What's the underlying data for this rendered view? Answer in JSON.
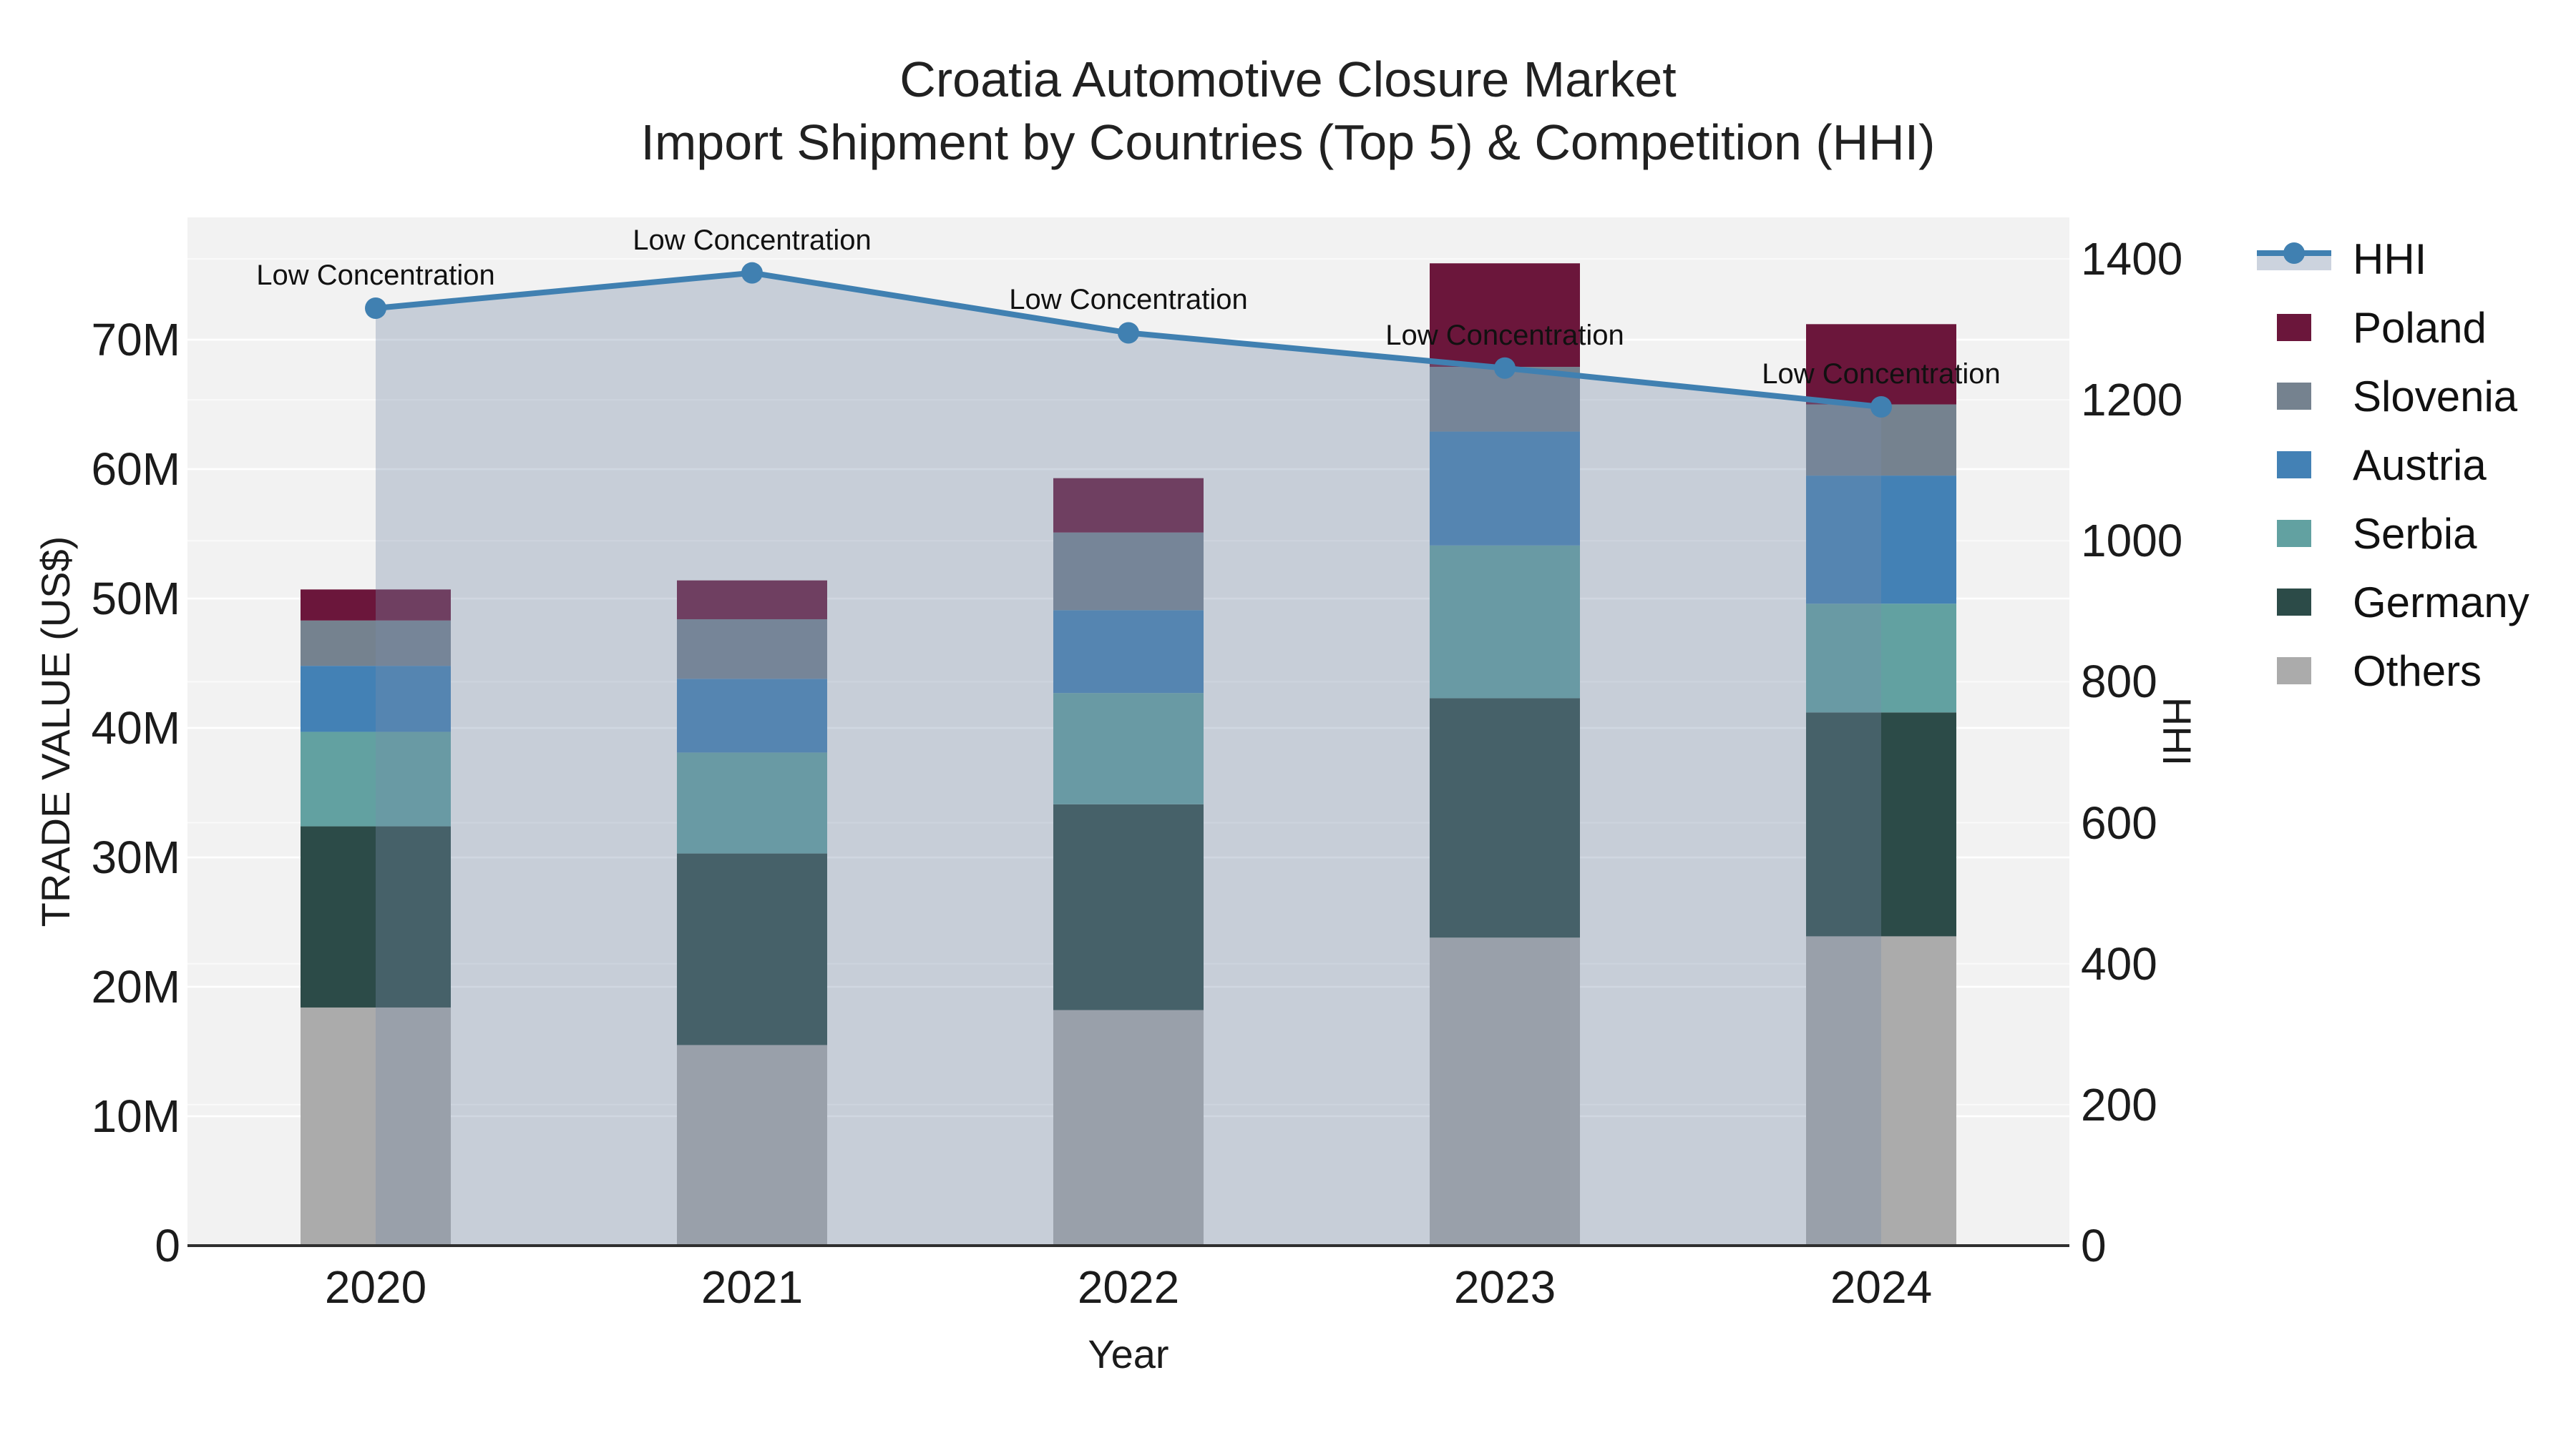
{
  "figure": {
    "title_line1": "Croatia Automotive Closure Market",
    "title_line2": "Import Shipment by Countries (Top 5) & Competition (HHI)"
  },
  "chart_data": {
    "type": "bar",
    "subtype": "stacked-bars-with-line-overlay",
    "plot_bg": "#f2f2f2",
    "categories": [
      "2020",
      "2021",
      "2022",
      "2023",
      "2024"
    ],
    "unit": "million US$",
    "series": [
      {
        "name": "Others",
        "color": "#ababab",
        "values": [
          18.4,
          15.5,
          18.2,
          23.8,
          23.9
        ]
      },
      {
        "name": "Germany",
        "color": "#2c4b48",
        "values": [
          14.0,
          14.8,
          15.9,
          18.5,
          17.3
        ]
      },
      {
        "name": "Serbia",
        "color": "#62a1a1",
        "values": [
          7.3,
          7.8,
          8.6,
          11.8,
          8.4
        ]
      },
      {
        "name": "Austria",
        "color": "#4381b5",
        "values": [
          5.1,
          5.7,
          6.4,
          8.8,
          9.9
        ]
      },
      {
        "name": "Slovenia",
        "color": "#75828f",
        "values": [
          3.5,
          4.6,
          6.0,
          5.0,
          5.5
        ]
      },
      {
        "name": "Poland",
        "color": "#6b163b",
        "values": [
          2.4,
          3.0,
          4.2,
          8.0,
          6.2
        ]
      }
    ],
    "bar_totals": [
      50.7,
      51.4,
      59.3,
      75.9,
      71.2
    ],
    "line_series": {
      "name": "HHI",
      "axis": "right",
      "values": [
        1330,
        1380,
        1295,
        1245,
        1190
      ],
      "color": "#4080b1",
      "area_color": "rgba(120,140,170,0.35)",
      "legend_band_color": "#ccd3de"
    },
    "annotations": [
      "Low Concentration",
      "Low Concentration",
      "Low Concentration",
      "Low Concentration",
      "Low Concentration"
    ],
    "left_axis": {
      "label": "TRADE VALUE (US$)",
      "max": 79.45,
      "ticks": [
        {
          "value": 0,
          "label": "0"
        },
        {
          "value": 10,
          "label": "10M"
        },
        {
          "value": 20,
          "label": "20M"
        },
        {
          "value": 30,
          "label": "30M"
        },
        {
          "value": 40,
          "label": "40M"
        },
        {
          "value": 50,
          "label": "50M"
        },
        {
          "value": 60,
          "label": "60M"
        },
        {
          "value": 70,
          "label": "70M"
        }
      ]
    },
    "right_axis": {
      "label": "HHI",
      "max": 1458.8,
      "ticks": [
        0,
        200,
        400,
        600,
        800,
        1000,
        1200,
        1400
      ]
    },
    "xlabel": "Year",
    "legend_position": "right-outside",
    "grid": {
      "color": "#ffffff",
      "on": true
    }
  }
}
